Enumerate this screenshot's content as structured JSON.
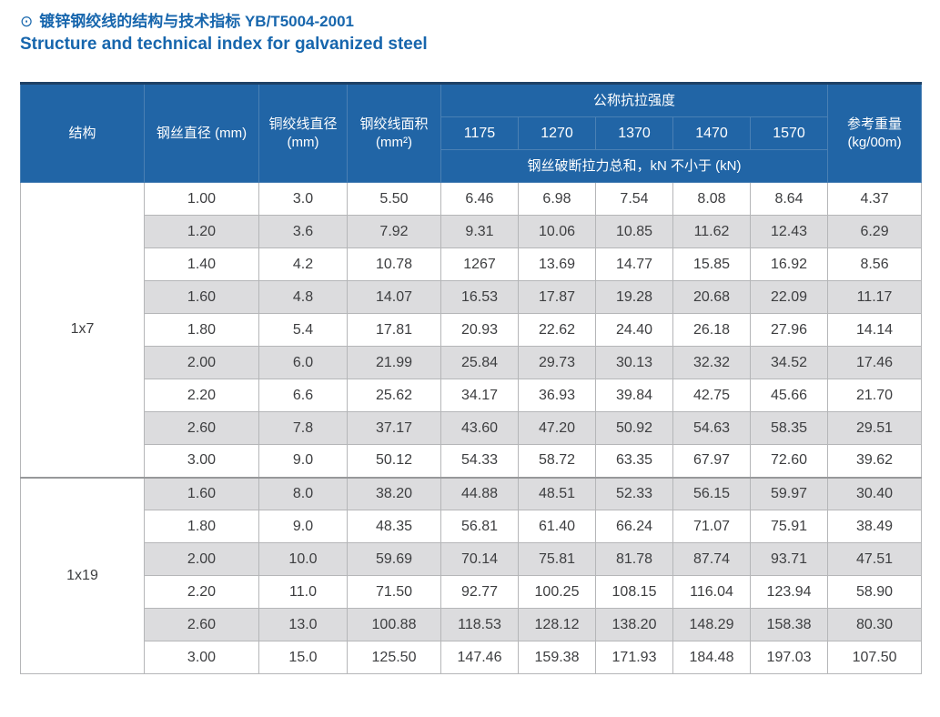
{
  "page": {
    "title_zh": "镀锌钢绞线的结构与技术指标 YB/T5004-2001",
    "title_en": "Structure and technical index for galvanized steel",
    "accent_color": "#1766ad"
  },
  "icons": {
    "circle_dot_icon": "⊙"
  },
  "table": {
    "colors": {
      "header_bg": "#2165a6",
      "header_border": "#4a80b4",
      "header_top_border": "#1e4166",
      "row_alt_bg": "#dcdcde",
      "row_bg": "#ffffff",
      "grid_border": "#b5b6b8",
      "section_divider": "#97989a"
    },
    "header": {
      "structure": "结构",
      "wire_diameter": "钢丝直径 (mm)",
      "strand_diameter": "铜绞线直径 (mm)",
      "strand_area": "钢绞线面积 (mm²)",
      "tensile_strength_group": "公称抗拉强度",
      "strength_grades": [
        "1175",
        "1270",
        "1370",
        "1470",
        "1570"
      ],
      "breaking_force_note": "钢丝破断拉力总和，kN 不小于 (kN)",
      "reference_weight": "参考重量 (kg/00m)"
    },
    "sections": [
      {
        "structure": "1x7",
        "rows": [
          [
            "1.00",
            "3.0",
            "5.50",
            "6.46",
            "6.98",
            "7.54",
            "8.08",
            "8.64",
            "4.37"
          ],
          [
            "1.20",
            "3.6",
            "7.92",
            "9.31",
            "10.06",
            "10.85",
            "11.62",
            "12.43",
            "6.29"
          ],
          [
            "1.40",
            "4.2",
            "10.78",
            "1267",
            "13.69",
            "14.77",
            "15.85",
            "16.92",
            "8.56"
          ],
          [
            "1.60",
            "4.8",
            "14.07",
            "16.53",
            "17.87",
            "19.28",
            "20.68",
            "22.09",
            "11.17"
          ],
          [
            "1.80",
            "5.4",
            "17.81",
            "20.93",
            "22.62",
            "24.40",
            "26.18",
            "27.96",
            "14.14"
          ],
          [
            "2.00",
            "6.0",
            "21.99",
            "25.84",
            "29.73",
            "30.13",
            "32.32",
            "34.52",
            "17.46"
          ],
          [
            "2.20",
            "6.6",
            "25.62",
            "34.17",
            "36.93",
            "39.84",
            "42.75",
            "45.66",
            "21.70"
          ],
          [
            "2.60",
            "7.8",
            "37.17",
            "43.60",
            "47.20",
            "50.92",
            "54.63",
            "58.35",
            "29.51"
          ],
          [
            "3.00",
            "9.0",
            "50.12",
            "54.33",
            "58.72",
            "63.35",
            "67.97",
            "72.60",
            "39.62"
          ]
        ]
      },
      {
        "structure": "1x19",
        "rows": [
          [
            "1.60",
            "8.0",
            "38.20",
            "44.88",
            "48.51",
            "52.33",
            "56.15",
            "59.97",
            "30.40"
          ],
          [
            "1.80",
            "9.0",
            "48.35",
            "56.81",
            "61.40",
            "66.24",
            "71.07",
            "75.91",
            "38.49"
          ],
          [
            "2.00",
            "10.0",
            "59.69",
            "70.14",
            "75.81",
            "81.78",
            "87.74",
            "93.71",
            "47.51"
          ],
          [
            "2.20",
            "11.0",
            "71.50",
            "92.77",
            "100.25",
            "108.15",
            "116.04",
            "123.94",
            "58.90"
          ],
          [
            "2.60",
            "13.0",
            "100.88",
            "118.53",
            "128.12",
            "138.20",
            "148.29",
            "158.38",
            "80.30"
          ],
          [
            "3.00",
            "15.0",
            "125.50",
            "147.46",
            "159.38",
            "171.93",
            "184.48",
            "197.03",
            "107.50"
          ]
        ]
      }
    ]
  }
}
